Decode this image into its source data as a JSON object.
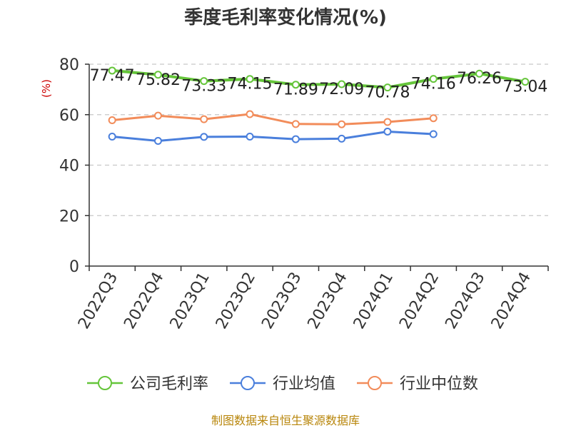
{
  "chart_data": {
    "type": "line",
    "title": "季度毛利率变化情况(%)",
    "ylabel": "(%)",
    "ylim": [
      0,
      80
    ],
    "yticks": [
      0,
      20,
      40,
      60,
      80
    ],
    "grid": true,
    "legend_position": "bottom",
    "categories": [
      "2022Q3",
      "2022Q4",
      "2023Q1",
      "2023Q2",
      "2023Q3",
      "2023Q4",
      "2024Q1",
      "2024Q2",
      "2024Q3",
      "2024Q4"
    ],
    "series": [
      {
        "name": "公司毛利率",
        "color": "#65c53a",
        "values": [
          77.47,
          75.82,
          73.33,
          74.15,
          71.89,
          72.09,
          70.78,
          74.16,
          76.26,
          73.04
        ],
        "labels": [
          "77.47",
          "75.82",
          "73.33",
          "74.15",
          "71.89",
          "72.09",
          "70.78",
          "74.16",
          "76.26",
          "73.04"
        ]
      },
      {
        "name": "行业均值",
        "color": "#4a7fdc",
        "values": [
          51.3,
          49.6,
          51.2,
          51.3,
          50.3,
          50.5,
          53.3,
          52.3,
          null,
          null
        ]
      },
      {
        "name": "行业中位数",
        "color": "#f28c5a",
        "values": [
          57.8,
          59.6,
          58.2,
          60.2,
          56.3,
          56.2,
          57.1,
          58.6,
          null,
          null
        ]
      }
    ],
    "source": "制图数据来自恒生聚源数据库"
  }
}
